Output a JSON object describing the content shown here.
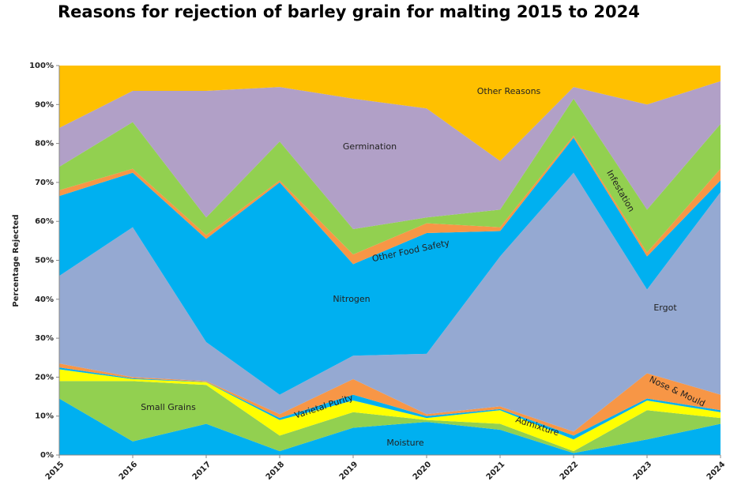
{
  "chart_data": {
    "type": "stacked-area",
    "title": "Reasons for rejection of barley grain for malting 2015 to 2024",
    "y_label": "Percentage Rejected",
    "categories": [
      "2015",
      "2016",
      "2017",
      "2018",
      "2019",
      "2020",
      "2021",
      "2022",
      "2023",
      "2024"
    ],
    "ylim": [
      0,
      100
    ],
    "yticks": [
      {
        "value": 0,
        "label": "0%"
      },
      {
        "value": 10,
        "label": "10%"
      },
      {
        "value": 20,
        "label": "20%"
      },
      {
        "value": 30,
        "label": "30%"
      },
      {
        "value": 40,
        "label": "40%"
      },
      {
        "value": 50,
        "label": "50%"
      },
      {
        "value": 60,
        "label": "60%"
      },
      {
        "value": 70,
        "label": "70%"
      },
      {
        "value": 80,
        "label": "80%"
      },
      {
        "value": 90,
        "label": "90%"
      },
      {
        "value": 100,
        "label": "100%"
      }
    ],
    "grid": false,
    "series": [
      {
        "name": "Moisture",
        "color": "#00b0f0",
        "values": [
          14.5,
          3.5,
          8,
          1,
          7,
          8.5,
          6.5,
          0.5,
          4,
          8
        ]
      },
      {
        "name": "Small Grains",
        "color": "#92d050",
        "values": [
          4.5,
          15.5,
          10,
          4,
          4,
          0.5,
          1.5,
          0.5,
          7.5,
          1.5
        ]
      },
      {
        "name": "Admixture",
        "color": "#ffff00",
        "values": [
          3,
          0.5,
          0.7,
          4,
          3,
          0.5,
          3.5,
          3,
          2.5,
          1.5
        ]
      },
      {
        "name": "Varietal Purity",
        "color": "#00b0f0",
        "values": [
          0.5,
          0.2,
          0.1,
          0.5,
          1.5,
          0.5,
          0.3,
          1,
          0.5,
          0.5
        ]
      },
      {
        "name": "Nose & Mould",
        "color": "#f79646",
        "values": [
          1,
          0.3,
          0.2,
          1,
          4,
          0.5,
          0.7,
          1,
          6.5,
          4
        ]
      },
      {
        "name": "Ergot",
        "color": "#95a9d2",
        "values": [
          22.5,
          38.5,
          10,
          5,
          6,
          15.5,
          38.5,
          66.5,
          21.5,
          52
        ]
      },
      {
        "name": "Nitrogen",
        "color": "#00b0f0",
        "values": [
          20.5,
          14,
          26.5,
          54.5,
          23.5,
          31,
          6.5,
          9,
          8.5,
          3
        ]
      },
      {
        "name": "Other Food Safety",
        "color": "#f79646",
        "values": [
          1.5,
          1,
          1,
          0.5,
          2.5,
          2.5,
          1,
          0.5,
          1,
          3
        ]
      },
      {
        "name": "Infestation",
        "color": "#92d050",
        "values": [
          6,
          12,
          4.5,
          10,
          6.5,
          1.5,
          4.5,
          9.5,
          11,
          11.5
        ]
      },
      {
        "name": "Germination",
        "color": "#b1a0c7",
        "values": [
          10,
          8,
          32.5,
          14,
          33.5,
          28,
          12.5,
          3,
          27,
          11
        ]
      },
      {
        "name": "Other Reasons",
        "color": "#ffc000",
        "values": [
          16,
          6.5,
          6.5,
          5.5,
          8.5,
          11,
          24.5,
          5.5,
          10,
          4
        ]
      }
    ]
  }
}
